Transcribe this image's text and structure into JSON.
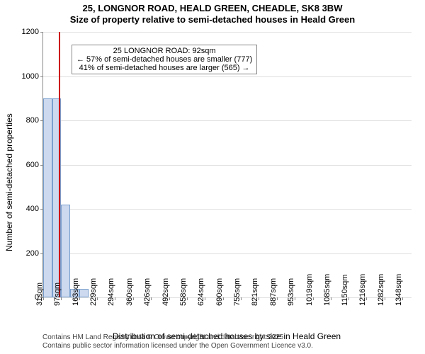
{
  "title": "25, LONGNOR ROAD, HEALD GREEN, CHEADLE, SK8 3BW",
  "subtitle": "Size of property relative to semi-detached houses in Heald Green",
  "chart": {
    "type": "histogram",
    "ylabel": "Number of semi-detached properties",
    "xlabel": "Distribution of semi-detached houses by size in Heald Green",
    "ylim": [
      0,
      1200
    ],
    "ytick_step": 200,
    "xlim": [
      31,
      1381
    ],
    "bar_fill": "#cdd9ee",
    "bar_border": "#7a9fce",
    "grid_color": "#e0e0e0",
    "axis_color": "#888888",
    "background": "#ffffff",
    "x_ticks": [
      31,
      97,
      163,
      229,
      294,
      360,
      426,
      492,
      558,
      624,
      690,
      755,
      821,
      887,
      953,
      1019,
      1085,
      1150,
      1216,
      1282,
      1348
    ],
    "x_tick_suffix": "sqm",
    "bars": [
      {
        "x0": 31,
        "x1": 64,
        "y": 900
      },
      {
        "x0": 64,
        "x1": 97,
        "y": 900
      },
      {
        "x0": 97,
        "x1": 130,
        "y": 420
      },
      {
        "x0": 130,
        "x1": 163,
        "y": 40
      },
      {
        "x0": 163,
        "x1": 196,
        "y": 40
      }
    ],
    "reference_line": {
      "x": 92,
      "color": "#cc0000"
    },
    "annotation": {
      "lines": [
        "25 LONGNOR ROAD: 92sqm",
        "← 57% of semi-detached houses are smaller (777)",
        "41% of semi-detached houses are larger (565) →"
      ],
      "border": "#888888",
      "bg": "#ffffff"
    }
  },
  "footer": {
    "line1": "Contains HM Land Registry data © Crown copyright and database right 2025.",
    "line2": "Contains public sector information licensed under the Open Government Licence v3.0."
  }
}
